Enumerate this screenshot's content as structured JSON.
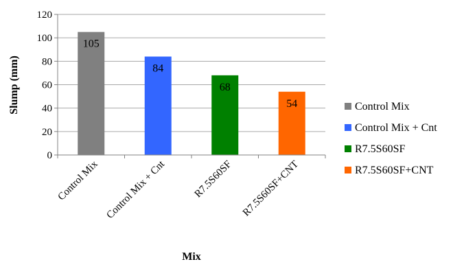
{
  "chart_data": {
    "type": "bar",
    "xlabel": "Mix",
    "ylabel": "Slump (mm)",
    "categories": [
      "Control Mix",
      "Control Mix + Cnt",
      "R7.5S60SF",
      "R7.5S60SF+CNT"
    ],
    "values": [
      105,
      84,
      68,
      54
    ],
    "data_labels": [
      "105",
      "84",
      "68",
      "54"
    ],
    "colors": [
      "#808080",
      "#3366ff",
      "#008000",
      "#ff6600"
    ],
    "ylim": [
      0,
      120
    ],
    "yticks": [
      0,
      20,
      40,
      60,
      80,
      100,
      120
    ],
    "grid": true,
    "legend": {
      "position": "right",
      "entries": [
        "Control Mix",
        "Control Mix + Cnt",
        "R7.5S60SF",
        "R7.5S60SF+CNT"
      ]
    }
  }
}
